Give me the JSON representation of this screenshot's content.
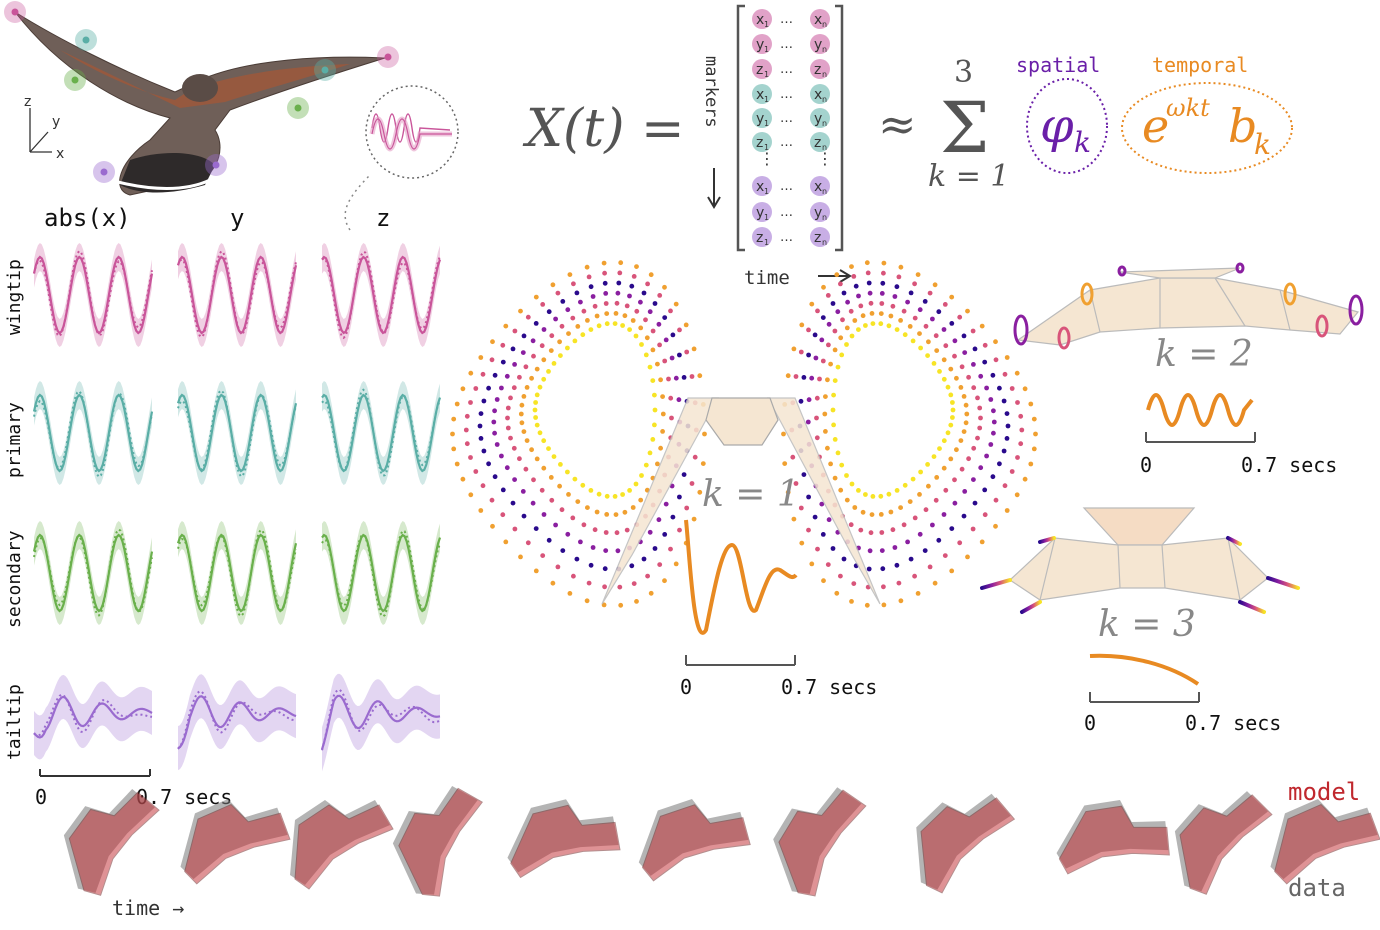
{
  "colors": {
    "wingtip": "#c9559a",
    "primary": "#5aaea6",
    "secondary": "#6ab04c",
    "tailtip": "#9a6bcf",
    "spatial": "#6a1fa8",
    "temporal": "#e88a22",
    "equation": "#555555",
    "model": "#c0282e",
    "data": "#666666"
  },
  "axes_legend": {
    "z": "z",
    "y": "y",
    "x": "x"
  },
  "columns": [
    "abs(x)",
    "y",
    "z"
  ],
  "rows": [
    "wingtip",
    "primary",
    "secondary",
    "tailtip"
  ],
  "left_scalebar": {
    "start": "0",
    "end": "0.7 secs"
  },
  "equation": {
    "lhs": "X(t) =",
    "markers_label": "markers",
    "time_label": "time",
    "approx": "≈",
    "sum_upper": "3",
    "sum_lower": "k = 1",
    "spatial_label": "spatial",
    "temporal_label": "temporal",
    "phi": "φ",
    "phi_sub": "k",
    "exp_base": "e",
    "exp_power": "ωkt",
    "b": "b",
    "b_sub": "k",
    "matrix_rows": [
      {
        "l": "x",
        "s": "1",
        "r": "n",
        "c": "wingtip"
      },
      {
        "l": "y",
        "s": "1",
        "r": "n",
        "c": "wingtip"
      },
      {
        "l": "z",
        "s": "1",
        "r": "n",
        "c": "wingtip"
      },
      {
        "l": "x",
        "s": "1",
        "r": "n",
        "c": "primary"
      },
      {
        "l": "y",
        "s": "1",
        "r": "n",
        "c": "primary"
      },
      {
        "l": "z",
        "s": "1",
        "r": "n",
        "c": "primary"
      },
      {
        "l": "x",
        "s": "1",
        "r": "n",
        "c": "tailtip"
      },
      {
        "l": "y",
        "s": "1",
        "r": "n",
        "c": "tailtip"
      },
      {
        "l": "z",
        "s": "1",
        "r": "n",
        "c": "tailtip"
      }
    ]
  },
  "modes": [
    {
      "label": "k = 1",
      "start": "0",
      "end": "0.7 secs"
    },
    {
      "label": "k = 2",
      "start": "0",
      "end": "0.7 secs"
    },
    {
      "label": "k = 3",
      "start": "0",
      "end": "0.7 secs"
    }
  ],
  "bottom": {
    "time_label": "time →",
    "model_label": "model",
    "data_label": "data"
  }
}
